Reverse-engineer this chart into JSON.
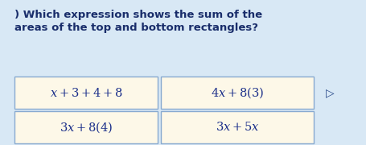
{
  "title_line1": ") Which expression shows the sum of the",
  "title_line2": "areas of the top and bottom rectangles?",
  "options": [
    {
      "text": "$x+3+4+8$"
    },
    {
      "text": "$4x+8(3)$"
    },
    {
      "text": "$3x+8(4)$"
    },
    {
      "text": "$3x+5x$"
    }
  ],
  "bg_color": "#d8e8f5",
  "box_fill": "#fdf8e8",
  "box_edge": "#88aad0",
  "text_color": "#1a2e6b",
  "option_text_color": "#1a2e8a",
  "title_fontsize": 9.5,
  "option_fontsize": 10.5,
  "cursor_color": "#2a4a8a"
}
